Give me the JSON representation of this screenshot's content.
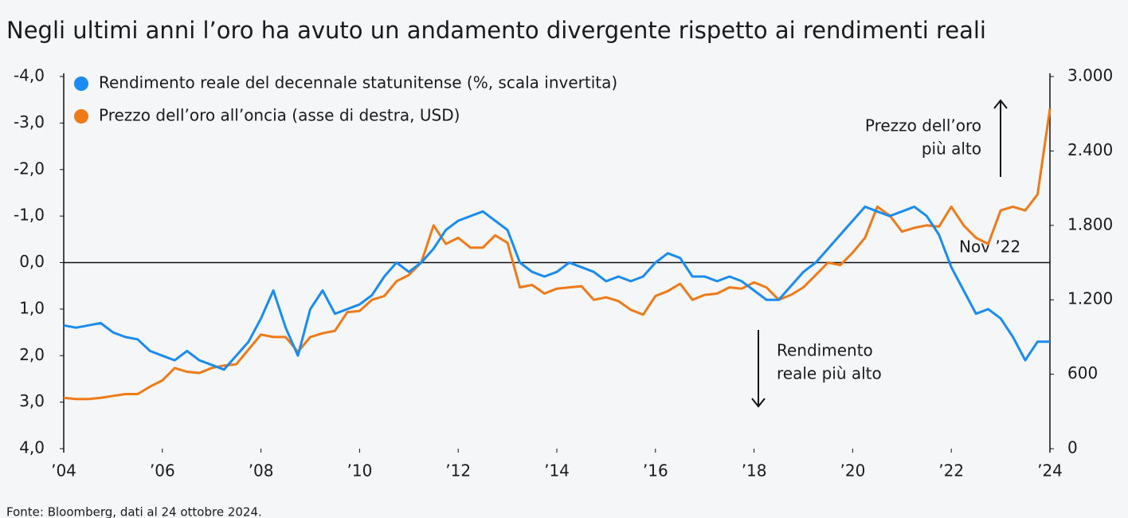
{
  "chart_data": {
    "type": "line",
    "title": "Negli ultimi anni l’oro ha avuto un andamento divergente rispetto ai rendimenti reali",
    "source": "Fonte: Bloomberg, dati al 24 ottobre 2024.",
    "annotations": [
      [
        "Prezzo dell’oro",
        "più alto"
      ],
      [
        "Rendimento",
        "reale più alto"
      ],
      [
        "Nov ’22"
      ]
    ],
    "x": [
      2004,
      2004.25,
      2004.5,
      2004.75,
      2005,
      2005.25,
      2005.5,
      2005.75,
      2006,
      2006.25,
      2006.5,
      2006.75,
      2007,
      2007.25,
      2007.5,
      2007.75,
      2008,
      2008.25,
      2008.5,
      2008.75,
      2009,
      2009.25,
      2009.5,
      2009.75,
      2010,
      2010.25,
      2010.5,
      2010.75,
      2011,
      2011.25,
      2011.5,
      2011.75,
      2012,
      2012.25,
      2012.5,
      2012.75,
      2013,
      2013.25,
      2013.5,
      2013.75,
      2014,
      2014.25,
      2014.5,
      2014.75,
      2015,
      2015.25,
      2015.5,
      2015.75,
      2016,
      2016.25,
      2016.5,
      2016.75,
      2017,
      2017.25,
      2017.5,
      2017.75,
      2018,
      2018.25,
      2018.5,
      2018.75,
      2019,
      2019.25,
      2019.5,
      2019.75,
      2020,
      2020.25,
      2020.5,
      2020.75,
      2021,
      2021.25,
      2021.5,
      2021.75,
      2022,
      2022.25,
      2022.5,
      2022.75,
      2023,
      2023.25,
      2023.5,
      2023.75,
      2024
    ],
    "series": [
      {
        "name": "Rendimento reale del decennale statunitense (%, scala invertita)",
        "color": "#1a8cf0",
        "values": [
          1.35,
          1.4,
          1.35,
          1.3,
          1.5,
          1.6,
          1.65,
          1.9,
          2.0,
          2.1,
          1.9,
          2.1,
          2.2,
          2.3,
          2.0,
          1.7,
          1.2,
          0.6,
          1.4,
          2.0,
          1.0,
          0.6,
          1.1,
          1.0,
          0.9,
          0.7,
          0.3,
          0.0,
          0.2,
          0.0,
          -0.3,
          -0.7,
          -0.9,
          -1.0,
          -1.1,
          -0.9,
          -0.7,
          0.0,
          0.2,
          0.3,
          0.2,
          0.0,
          0.1,
          0.2,
          0.4,
          0.3,
          0.4,
          0.3,
          0.0,
          -0.2,
          -0.1,
          0.3,
          0.3,
          0.4,
          0.3,
          0.4,
          0.6,
          0.8,
          0.8,
          0.5,
          0.2,
          0.0,
          -0.3,
          -0.6,
          -0.9,
          -1.2,
          -1.1,
          -1.0,
          -1.1,
          -1.2,
          -1.0,
          -0.6,
          0.1,
          0.6,
          1.1,
          1.0,
          1.2,
          1.6,
          2.1,
          1.7,
          1.7
        ]
      },
      {
        "name": "Prezzo dell’oro all’oncia (asse di destra, USD)",
        "color": "#ee7a18",
        "axis": "y2",
        "values": [
          410,
          400,
          400,
          410,
          425,
          440,
          440,
          500,
          550,
          650,
          620,
          610,
          650,
          670,
          680,
          800,
          920,
          900,
          900,
          780,
          900,
          930,
          950,
          1100,
          1110,
          1200,
          1230,
          1350,
          1400,
          1500,
          1800,
          1650,
          1700,
          1620,
          1620,
          1720,
          1660,
          1300,
          1320,
          1250,
          1290,
          1300,
          1310,
          1200,
          1220,
          1190,
          1120,
          1080,
          1230,
          1270,
          1330,
          1200,
          1240,
          1250,
          1300,
          1290,
          1340,
          1300,
          1200,
          1240,
          1300,
          1400,
          1500,
          1480,
          1580,
          1700,
          1950,
          1880,
          1750,
          1780,
          1800,
          1790,
          1950,
          1800,
          1700,
          1650,
          1920,
          1950,
          1920,
          2050,
          2740
        ]
      }
    ],
    "xlim": [
      2004,
      2024
    ],
    "xticks": [
      {
        "value": 2004,
        "label": "’04"
      },
      {
        "value": 2006,
        "label": "’06"
      },
      {
        "value": 2008,
        "label": "’08"
      },
      {
        "value": 2010,
        "label": "’10"
      },
      {
        "value": 2012,
        "label": "’12"
      },
      {
        "value": 2014,
        "label": "’14"
      },
      {
        "value": 2016,
        "label": "’16"
      },
      {
        "value": 2018,
        "label": "’18"
      },
      {
        "value": 2020,
        "label": "’20"
      },
      {
        "value": 2022,
        "label": "’22"
      },
      {
        "value": 2024,
        "label": "’24"
      }
    ],
    "ylim": [
      -4,
      4
    ],
    "y_inverted": true,
    "yticks": [
      {
        "value": -4,
        "label": "-4,0"
      },
      {
        "value": -3,
        "label": "-3,0"
      },
      {
        "value": -2,
        "label": "-2,0"
      },
      {
        "value": -1,
        "label": "-1,0"
      },
      {
        "value": 0,
        "label": "0,0"
      },
      {
        "value": 1,
        "label": "1,0"
      },
      {
        "value": 2,
        "label": "2,0"
      },
      {
        "value": 3,
        "label": "3,0"
      },
      {
        "value": 4,
        "label": "4,0"
      }
    ],
    "y2lim": [
      0,
      3000
    ],
    "y2ticks": [
      0,
      600,
      {
        "value": 1200,
        "label": "1.200"
      },
      {
        "value": 1800,
        "label": "1.800"
      },
      {
        "value": 2400,
        "label": "2.400"
      },
      {
        "value": 3000,
        "label": "3.000"
      }
    ],
    "legend": "top-left"
  }
}
